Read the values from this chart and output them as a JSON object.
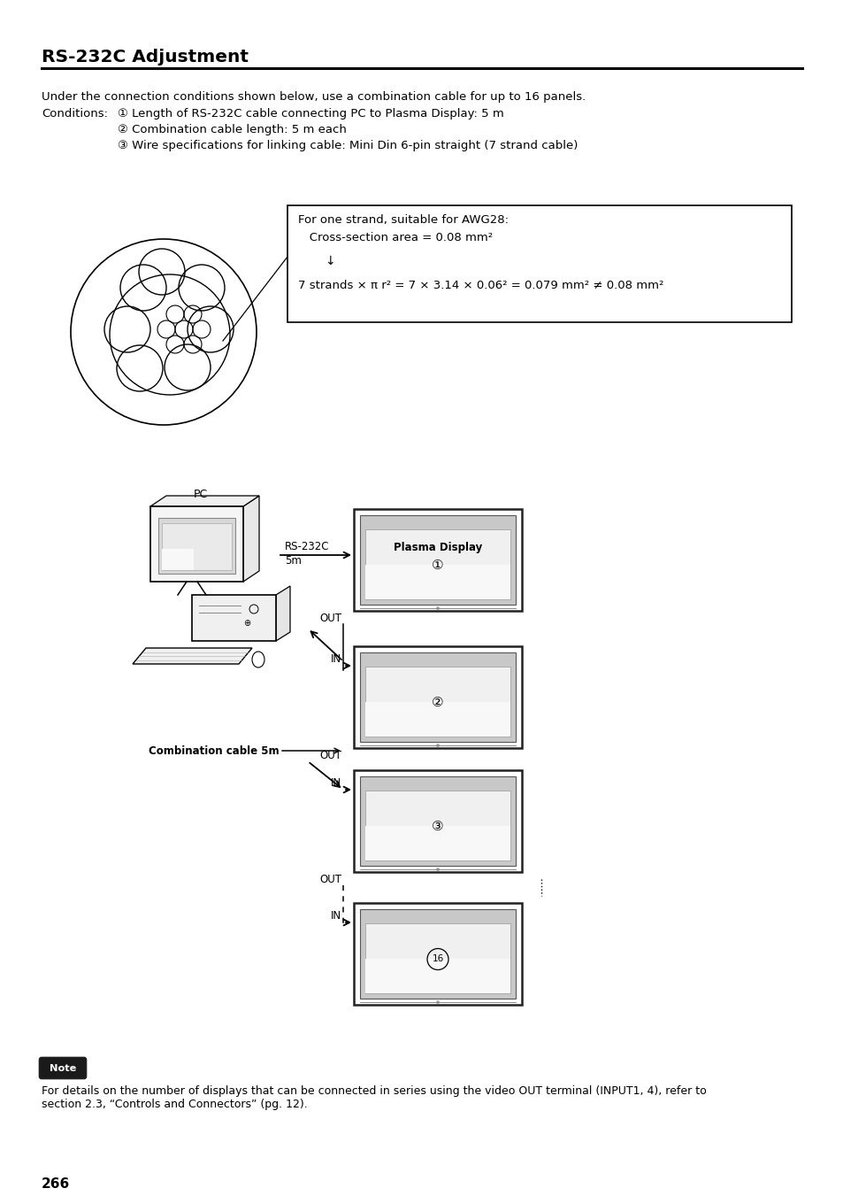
{
  "title": "RS-232C Adjustment",
  "bg_color": "#ffffff",
  "text_color": "#000000",
  "intro_line": "Under the connection conditions shown below, use a combination cable for up to 16 panels.",
  "conditions_label": "Conditions:",
  "condition1": "① Length of RS-232C cable connecting PC to Plasma Display: 5 m",
  "condition2": "② Combination cable length: 5 m each",
  "condition3": "③ Wire specifications for linking cable: Mini Din 6-pin straight (7 strand cable)",
  "box_line1": "For one strand, suitable for AWG28:",
  "box_line2": "   Cross-section area = 0.08 mm²",
  "box_line3": "↓",
  "box_line4": "7 strands × π r² = 7 × 3.14 × 0.06² = 0.079 mm² ≠ 0.08 mm²",
  "page_number": "266",
  "note_text": "For details on the number of displays that can be connected in series using the video OUT terminal (INPUT1, 4), refer to\nsection 2.3, “Controls and Connectors” (pg. 12).",
  "pc_label": "PC",
  "rs232c_label": "RS-232C",
  "rs232c_5m": "5m",
  "comb_cable_label": "Combination cable 5m",
  "out_label": "OUT",
  "in_label": "IN",
  "plasma_display_label": "Plasma Display",
  "disp1_num": "①",
  "disp2_num": "②",
  "disp3_num": "③",
  "disp4_num": "16"
}
